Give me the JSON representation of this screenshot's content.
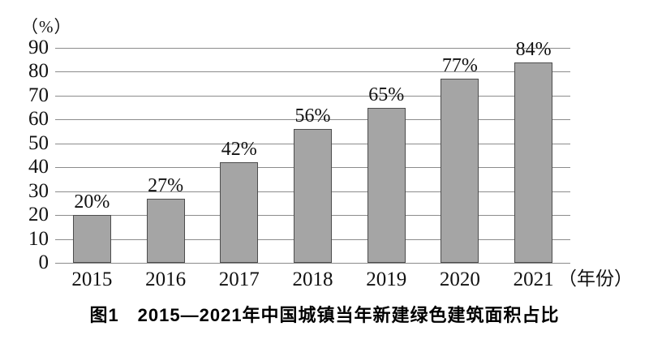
{
  "figure": {
    "caption": "图1　2015—2021年中国城镇当年新建绿色建筑面积占比"
  },
  "chart_data": {
    "type": "bar",
    "title": "图1 2015—2021年中国城镇当年新建绿色建筑面积占比",
    "categories": [
      "2015",
      "2016",
      "2017",
      "2018",
      "2019",
      "2020",
      "2021"
    ],
    "values": [
      20,
      27,
      42,
      56,
      65,
      77,
      84
    ],
    "data_labels": [
      "20%",
      "27%",
      "42%",
      "56%",
      "65%",
      "77%",
      "84%"
    ],
    "xlabel": "（年份）",
    "ylabel": "（%）",
    "y_unit_label": "（%）",
    "x_unit_label": "（年份）",
    "ylim": [
      0,
      90
    ],
    "y_ticks": [
      0,
      10,
      20,
      30,
      40,
      50,
      60,
      70,
      80,
      90
    ],
    "grid": true,
    "legend": "none",
    "bar_fill_color": "#a5a5a5",
    "bar_border_color": "#4d4d4d",
    "gridline_color": "#8c8c8c",
    "text_color": "#111111",
    "background_color": "#ffffff"
  }
}
